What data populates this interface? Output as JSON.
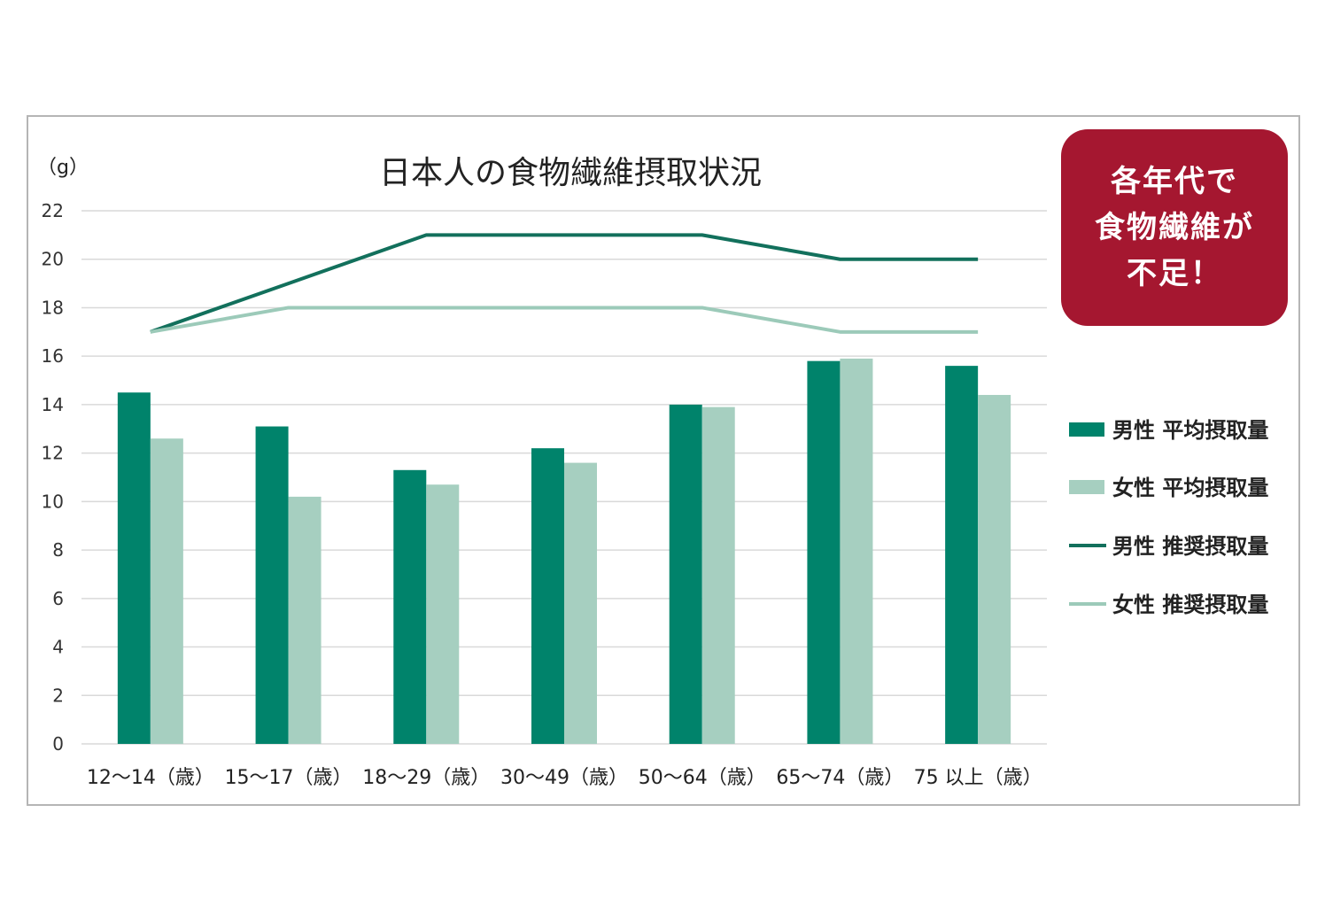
{
  "chart_data": {
    "type": "bar",
    "title": "日本人の食物繊維摂取状況",
    "ylabel": "（g）",
    "xlabel": "",
    "ylim": [
      0,
      22
    ],
    "yticks": [
      0,
      2,
      4,
      6,
      8,
      10,
      12,
      14,
      16,
      18,
      20,
      22
    ],
    "grid": true,
    "legend_position": "right",
    "categories": [
      "12～14（歳）",
      "15～17（歳）",
      "18～29（歳）",
      "30～49（歳）",
      "50～64（歳）",
      "65～74（歳）",
      "75 以上（歳）"
    ],
    "series": [
      {
        "name": "男性 平均摂取量",
        "kind": "bar",
        "color": "#00836b",
        "values": [
          14.5,
          13.1,
          11.3,
          12.2,
          14.0,
          15.8,
          15.6
        ]
      },
      {
        "name": "女性 平均摂取量",
        "kind": "bar",
        "color": "#a6cfc0",
        "values": [
          12.6,
          10.2,
          10.7,
          11.6,
          13.9,
          15.9,
          14.4
        ]
      },
      {
        "name": "男性 推奨摂取量",
        "kind": "line",
        "color": "#12705c",
        "values": [
          17,
          19,
          21,
          21,
          21,
          20,
          20
        ]
      },
      {
        "name": "女性 推奨摂取量",
        "kind": "line",
        "color": "#9ccab9",
        "values": [
          17,
          18,
          18,
          18,
          18,
          17,
          17
        ]
      }
    ]
  },
  "callout": {
    "lines": [
      "各年代で",
      "食物繊維が",
      "不足！"
    ],
    "bg_color": "#a51730"
  }
}
